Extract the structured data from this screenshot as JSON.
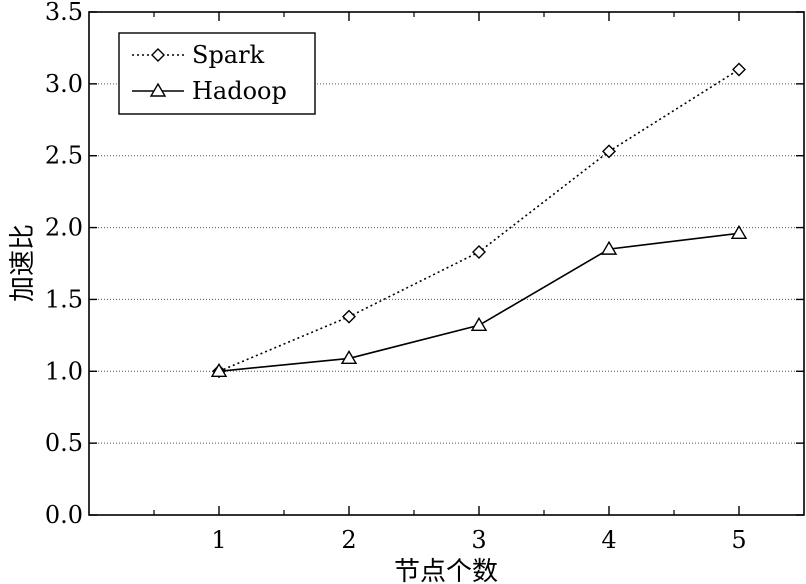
{
  "chart_data": {
    "type": "line",
    "title": "",
    "xlabel": "节点个数",
    "ylabel": "加速比",
    "x": [
      1,
      2,
      3,
      4,
      5
    ],
    "x_tick_labels": [
      "1",
      "2",
      "3",
      "4",
      "5"
    ],
    "xlim": [
      0,
      5.5
    ],
    "ylim": [
      0,
      3.5
    ],
    "y_tick_labels": [
      "0.0",
      "0.5",
      "1.0",
      "1.5",
      "2.0",
      "2.5",
      "3.0",
      "3.5"
    ],
    "grid": "horizontal dotted",
    "legend_position": "top-left",
    "series": [
      {
        "name": "Spark",
        "values": [
          1.0,
          1.38,
          1.83,
          2.53,
          3.1
        ],
        "marker": "diamond",
        "line_style": "dotted",
        "color": "#000000"
      },
      {
        "name": "Hadoop",
        "values": [
          1.0,
          1.09,
          1.32,
          1.85,
          1.96
        ],
        "marker": "triangle",
        "line_style": "solid",
        "color": "#000000"
      }
    ]
  }
}
